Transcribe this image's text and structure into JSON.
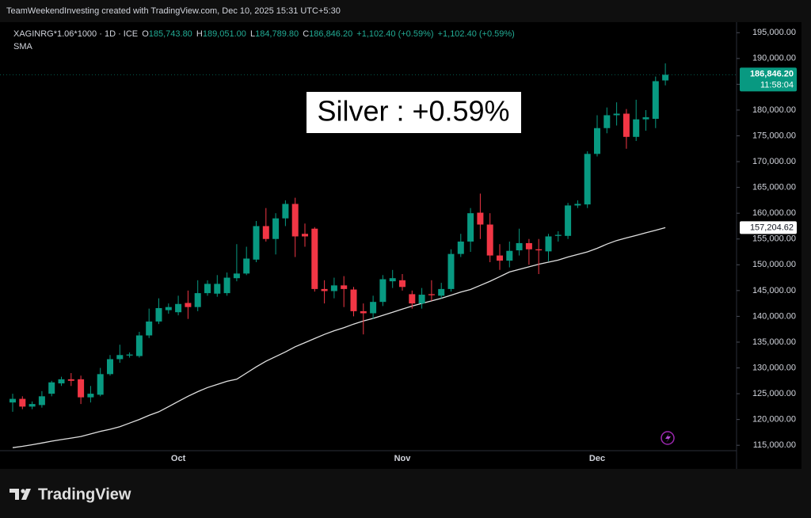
{
  "header": {
    "credit": "TeamWeekendInvesting created with TradingView.com, Dec 10, 2025 15:31 UTC+5:30"
  },
  "legend": {
    "symbol": "XAGINRG*1.06*1000 · 1D · ICE",
    "ohlc": [
      {
        "key": "O",
        "value": "185,743.80"
      },
      {
        "key": "H",
        "value": "189,051.00"
      },
      {
        "key": "L",
        "value": "184,789.80"
      },
      {
        "key": "C",
        "value": "186,846.20"
      }
    ],
    "changes": [
      "+1,102.40 (+0.59%)",
      "+1,102.40 (+0.59%)"
    ],
    "indicator": "SMA"
  },
  "footer": {
    "brand": "TradingView"
  },
  "chart_data": {
    "type": "candlestick",
    "annotation": "Silver : +0.59%",
    "categories": [
      null,
      null,
      null,
      null,
      null,
      null,
      null,
      null,
      null,
      null,
      null,
      null,
      null,
      null,
      null,
      null,
      null,
      "Oct",
      null,
      null,
      null,
      null,
      null,
      null,
      null,
      null,
      null,
      null,
      null,
      null,
      null,
      null,
      null,
      null,
      null,
      null,
      null,
      null,
      null,
      null,
      "Nov",
      null,
      null,
      null,
      null,
      null,
      null,
      null,
      null,
      null,
      null,
      null,
      null,
      null,
      null,
      null,
      null,
      null,
      null,
      null,
      "Dec",
      null,
      null,
      null,
      null,
      null,
      null,
      null
    ],
    "open": [
      123300,
      124000,
      122500,
      122800,
      125000,
      127000,
      127800,
      127800,
      124300,
      124800,
      128800,
      131700,
      132400,
      132300,
      136300,
      139000,
      141200,
      140800,
      142600,
      141800,
      144500,
      144400,
      144500,
      147400,
      148300,
      151000,
      157500,
      155000,
      159000,
      161800,
      156000,
      157000,
      145300,
      144900,
      146000,
      145200,
      141000,
      140600,
      142800,
      146800,
      147000,
      144300,
      142500,
      144300,
      144000,
      145300,
      152100,
      154500,
      160100,
      157800,
      151800,
      150800,
      152800,
      154200,
      153000,
      152600,
      155600,
      155600,
      161500,
      161700,
      171500,
      176500,
      179000,
      179300,
      174800,
      178200,
      178300,
      185743.8
    ],
    "high": [
      125000,
      124500,
      123500,
      125500,
      127500,
      128300,
      129000,
      128500,
      126500,
      130000,
      132500,
      134500,
      133000,
      137000,
      141500,
      143500,
      142500,
      144000,
      145000,
      147000,
      147000,
      148000,
      148500,
      154000,
      153500,
      158500,
      161000,
      160000,
      162500,
      163000,
      158000,
      157300,
      147000,
      147500,
      147800,
      145700,
      142500,
      144000,
      148000,
      149000,
      148200,
      145000,
      145500,
      147000,
      146500,
      153000,
      156000,
      161000,
      163800,
      160000,
      154000,
      154500,
      157000,
      155000,
      155000,
      156000,
      156500,
      162000,
      162500,
      172000,
      179000,
      180500,
      181500,
      180200,
      182000,
      180000,
      186500,
      189051
    ],
    "low": [
      121500,
      122000,
      122000,
      122300,
      124500,
      126500,
      126500,
      123000,
      123300,
      124500,
      128500,
      131000,
      132000,
      132000,
      135800,
      138500,
      140500,
      140200,
      139500,
      141000,
      144000,
      143800,
      144000,
      146800,
      148000,
      150500,
      154500,
      152000,
      157500,
      151500,
      153500,
      144800,
      142500,
      143500,
      141800,
      140000,
      136500,
      139500,
      142000,
      145500,
      145000,
      141500,
      141500,
      143000,
      143500,
      144800,
      151500,
      152500,
      155000,
      150500,
      149000,
      149500,
      151800,
      150000,
      148200,
      150700,
      154500,
      155000,
      161000,
      161000,
      171000,
      175500,
      177000,
      172500,
      174000,
      176000,
      176500,
      184789.8
    ],
    "close": [
      124000,
      122500,
      123000,
      124500,
      127200,
      127800,
      127500,
      124300,
      125000,
      128800,
      131700,
      132500,
      132600,
      136300,
      139000,
      141600,
      141800,
      142400,
      141800,
      144500,
      146300,
      146300,
      147500,
      148300,
      151200,
      157500,
      155000,
      159000,
      161800,
      155500,
      155500,
      145300,
      144900,
      146000,
      145300,
      141000,
      140600,
      142800,
      147200,
      147400,
      145700,
      142500,
      144200,
      144100,
      145300,
      152100,
      154500,
      160000,
      157800,
      151800,
      150800,
      152700,
      154200,
      153000,
      152800,
      155500,
      155800,
      161500,
      161800,
      171500,
      176500,
      179000,
      179300,
      174800,
      178200,
      178600,
      185600,
      186846.2
    ],
    "colors": {
      "up": "#089981",
      "down": "#f23645"
    },
    "last_price_label": "186,846.20",
    "countdown": "11:58:04",
    "series": [
      {
        "name": "SMA",
        "color": "#e0e0e0",
        "values": [
          114540,
          114800,
          115100,
          115450,
          115800,
          116100,
          116400,
          116700,
          117200,
          117700,
          118100,
          118600,
          119300,
          120000,
          120800,
          121500,
          122500,
          123500,
          124500,
          125400,
          126200,
          126800,
          127400,
          127800,
          129000,
          130200,
          131300,
          132200,
          133100,
          134100,
          134900,
          135700,
          136500,
          137200,
          137800,
          138500,
          139100,
          139600,
          140200,
          140800,
          141400,
          142000,
          142500,
          143000,
          143500,
          144100,
          144700,
          145200,
          146000,
          146800,
          147700,
          148600,
          149100,
          149600,
          150100,
          150500,
          150900,
          151500,
          152000,
          152500,
          153200,
          154000,
          154700,
          155200,
          155700,
          156200,
          156700,
          157204.62
        ],
        "last_label": "157,204.62"
      }
    ],
    "ylim": [
      113800,
      197500
    ],
    "yticks": [
      {
        "value": 115000,
        "label": "115,000.00"
      },
      {
        "value": 120000,
        "label": "120,000.00"
      },
      {
        "value": 125000,
        "label": "125,000.00"
      },
      {
        "value": 130000,
        "label": "130,000.00"
      },
      {
        "value": 135000,
        "label": "135,000.00"
      },
      {
        "value": 140000,
        "label": "140,000.00"
      },
      {
        "value": 145000,
        "label": "145,000.00"
      },
      {
        "value": 150000,
        "label": "150,000.00"
      },
      {
        "value": 155000,
        "label": "155,000.00"
      },
      {
        "value": 160000,
        "label": "160,000.00"
      },
      {
        "value": 165000,
        "label": "165,000.00"
      },
      {
        "value": 170000,
        "label": "170,000.00"
      },
      {
        "value": 175000,
        "label": "175,000.00"
      },
      {
        "value": 180000,
        "label": "180,000.00"
      },
      {
        "value": 185000,
        "label": "185,000.00"
      },
      {
        "value": 190000,
        "label": "190,000.00"
      },
      {
        "value": 195000,
        "label": "195,000.00"
      }
    ]
  }
}
